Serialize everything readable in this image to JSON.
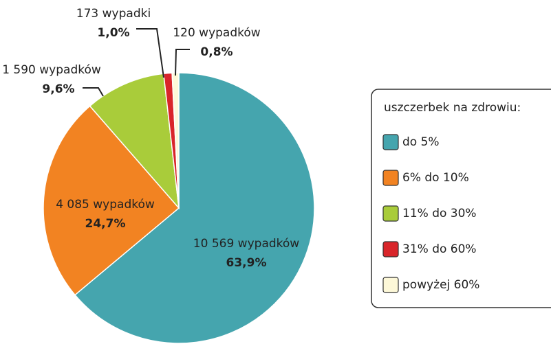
{
  "chart_data": {
    "type": "pie",
    "legend_title": "uszczerbek na zdrowiu:",
    "categories": [
      "do 5%",
      "6% do 10%",
      "11% do 30%",
      "31% do 60%",
      "powyżej 60%"
    ],
    "values": [
      63.9,
      24.7,
      9.6,
      1.0,
      0.8
    ],
    "value_labels": [
      "63,9%",
      "24,7%",
      "9,6%",
      "1,0%",
      "0,8%"
    ],
    "counts": [
      10569,
      4085,
      1590,
      173,
      120
    ],
    "count_labels": [
      "10 569 wypadków",
      "4 085 wypadków",
      "1 590 wypadków",
      "173 wypadki",
      "120 wypadków"
    ],
    "colors": [
      "#45a5ae",
      "#f28322",
      "#a9cc3a",
      "#d9252a",
      "#fdf8d8"
    ],
    "legend": "right"
  }
}
